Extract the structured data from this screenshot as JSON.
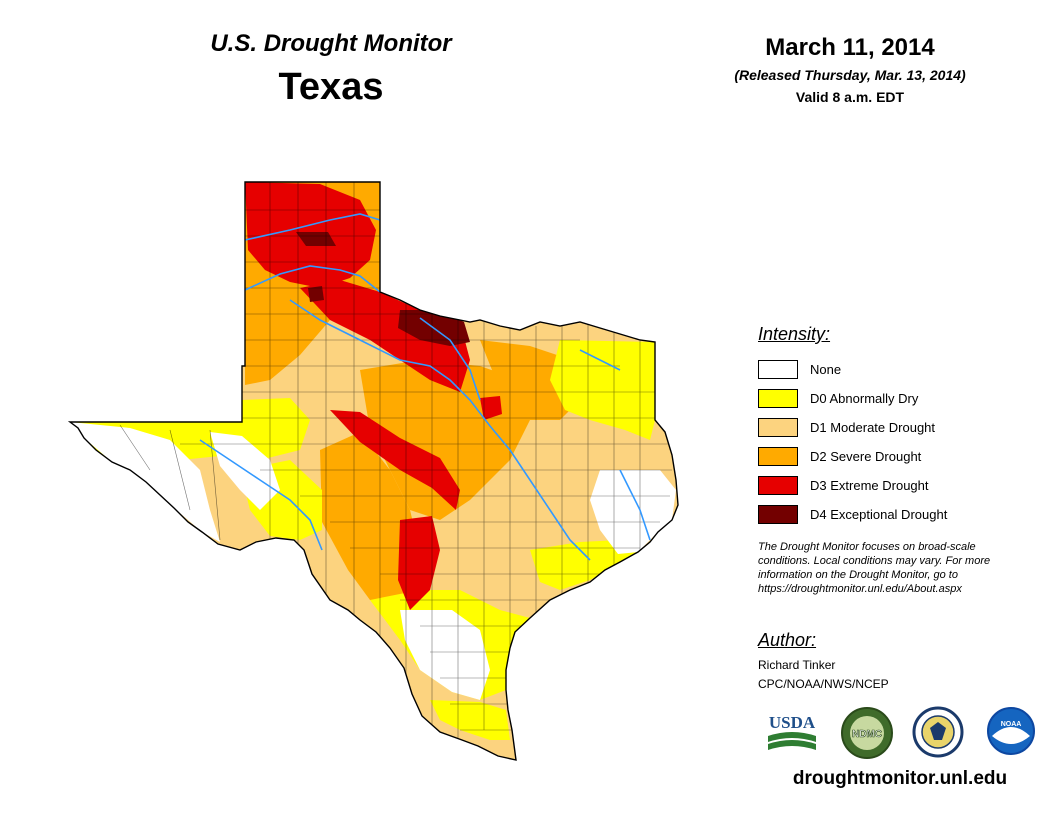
{
  "header": {
    "title": "U.S. Drought Monitor",
    "state": "Texas",
    "date": "March 11, 2014",
    "released": "(Released Thursday, Mar. 13, 2014)",
    "valid": "Valid 8 a.m. EDT"
  },
  "legend": {
    "title": "Intensity:",
    "items": [
      {
        "label": "None",
        "color": "#ffffff"
      },
      {
        "label": "D0 Abnormally Dry",
        "color": "#ffff00"
      },
      {
        "label": "D1 Moderate Drought",
        "color": "#fcd37f"
      },
      {
        "label": "D2 Severe Drought",
        "color": "#ffaa00"
      },
      {
        "label": "D3 Extreme Drought",
        "color": "#e60000"
      },
      {
        "label": "D4 Exceptional Drought",
        "color": "#730000"
      }
    ]
  },
  "note": {
    "lines": [
      "The Drought Monitor focuses on broad-scale",
      "conditions. Local conditions may vary. For more",
      "information on the Drought Monitor, go to",
      "https://droughtmonitor.unl.edu/About.aspx"
    ]
  },
  "author": {
    "heading": "Author:",
    "name": "Richard Tinker",
    "org": "CPC/NOAA/NWS/NCEP"
  },
  "logos": {
    "usda": "USDA",
    "ndmc": "NDMC",
    "noaa": "NOAA"
  },
  "footer": {
    "site": "droughtmonitor.unl.edu"
  },
  "map": {
    "river_color": "#3399ff",
    "boundary_color": "#000000"
  }
}
